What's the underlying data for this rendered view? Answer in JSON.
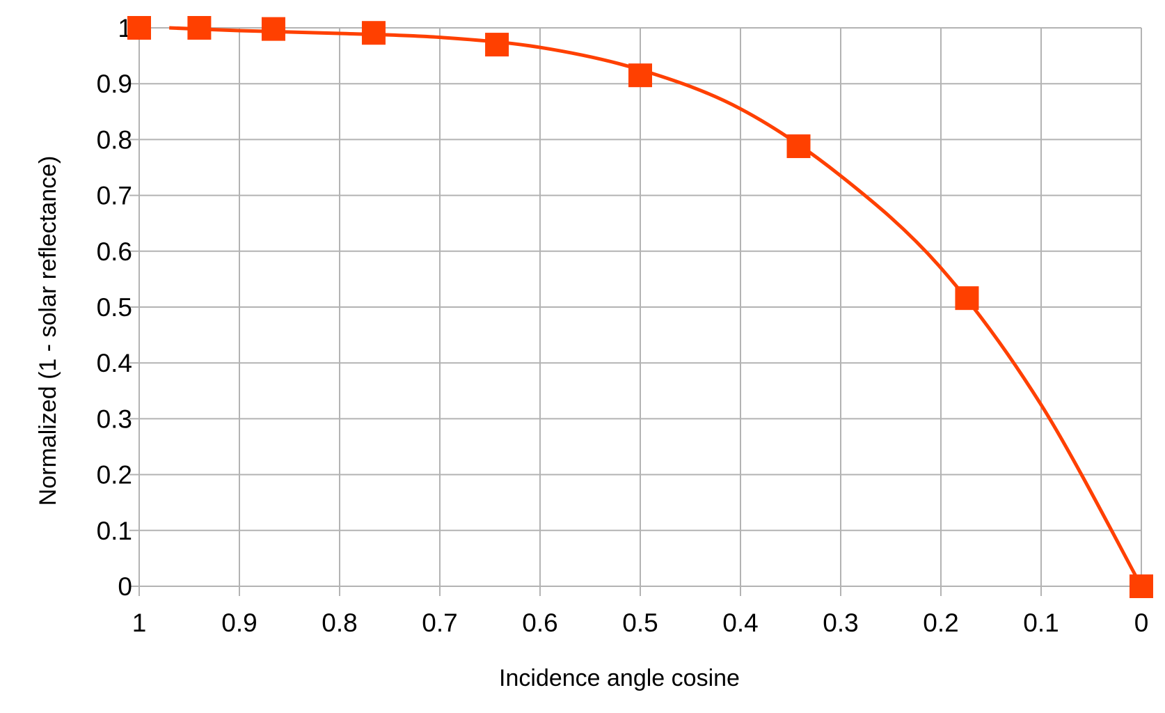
{
  "chart_data": {
    "type": "scatter",
    "xlabel": "Incidence angle cosine",
    "ylabel": "Normalized (1 - solar reflectance)",
    "xlim": [
      1,
      0
    ],
    "ylim": [
      0,
      1
    ],
    "x_reversed": true,
    "grid": true,
    "legend": "none",
    "xticks": [
      "1",
      "0.9",
      "0.8",
      "0.7",
      "0.6",
      "0.5",
      "0.4",
      "0.3",
      "0.2",
      "0.1",
      "0"
    ],
    "yticks": [
      "0",
      "0.1",
      "0.2",
      "0.3",
      "0.4",
      "0.5",
      "0.6",
      "0.7",
      "0.8",
      "0.9",
      "1"
    ],
    "series": [
      {
        "color": "#ff4000",
        "marker": "square",
        "points": [
          {
            "x": 1.0,
            "y": 1.0
          },
          {
            "x": 0.94,
            "y": 1.0
          },
          {
            "x": 0.866,
            "y": 0.998
          },
          {
            "x": 0.766,
            "y": 0.991
          },
          {
            "x": 0.643,
            "y": 0.97
          },
          {
            "x": 0.5,
            "y": 0.915
          },
          {
            "x": 0.342,
            "y": 0.788
          },
          {
            "x": 0.174,
            "y": 0.516
          },
          {
            "x": 0.0,
            "y": 0.0
          }
        ],
        "trendline": [
          {
            "x": 0.97,
            "y": 1.0
          },
          {
            "x": 0.9,
            "y": 0.995
          },
          {
            "x": 0.8,
            "y": 0.99
          },
          {
            "x": 0.7,
            "y": 0.983
          },
          {
            "x": 0.6,
            "y": 0.965
          },
          {
            "x": 0.5,
            "y": 0.925
          },
          {
            "x": 0.4,
            "y": 0.855
          },
          {
            "x": 0.3,
            "y": 0.735
          },
          {
            "x": 0.2,
            "y": 0.57
          },
          {
            "x": 0.1,
            "y": 0.325
          },
          {
            "x": 0.0,
            "y": 0.0
          }
        ]
      }
    ]
  }
}
